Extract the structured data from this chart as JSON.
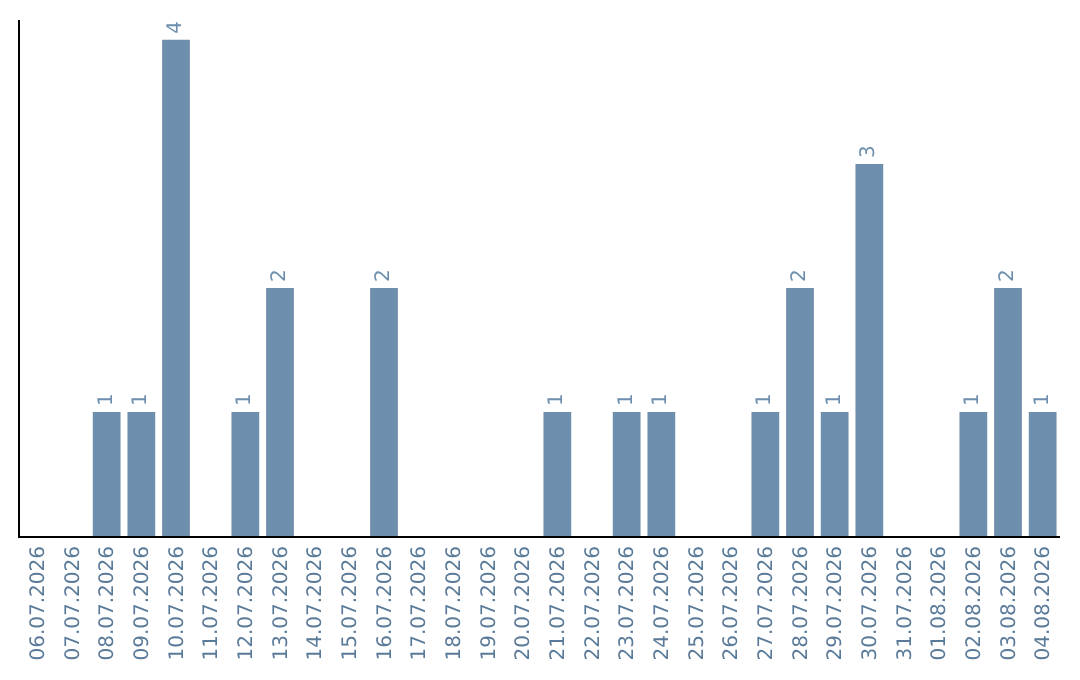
{
  "chart_data": {
    "type": "bar",
    "categories": [
      "06.07.2026",
      "07.07.2026",
      "08.07.2026",
      "09.07.2026",
      "10.07.2026",
      "11.07.2026",
      "12.07.2026",
      "13.07.2026",
      "14.07.2026",
      "15.07.2026",
      "16.07.2026",
      "17.07.2026",
      "18.07.2026",
      "19.07.2026",
      "20.07.2026",
      "21.07.2026",
      "22.07.2026",
      "23.07.2026",
      "24.07.2026",
      "25.07.2026",
      "26.07.2026",
      "27.07.2026",
      "28.07.2026",
      "29.07.2026",
      "30.07.2026",
      "31.07.2026",
      "01.08.2026",
      "02.08.2026",
      "03.08.2026",
      "04.08.2026"
    ],
    "values": [
      0,
      0,
      1,
      1,
      4,
      0,
      1,
      2,
      0,
      0,
      2,
      0,
      0,
      0,
      0,
      1,
      0,
      1,
      1,
      0,
      0,
      1,
      2,
      1,
      3,
      0,
      0,
      1,
      2,
      1
    ],
    "value_labels": [
      null,
      null,
      "1",
      "1",
      "4",
      null,
      "1",
      "2",
      null,
      null,
      "2",
      null,
      null,
      null,
      null,
      "1",
      null,
      "1",
      "1",
      null,
      null,
      "1",
      "2",
      "1",
      "3",
      null,
      null,
      "1",
      "2",
      "1"
    ],
    "color": "#6d8fad",
    "tick_labels": "x"
  }
}
